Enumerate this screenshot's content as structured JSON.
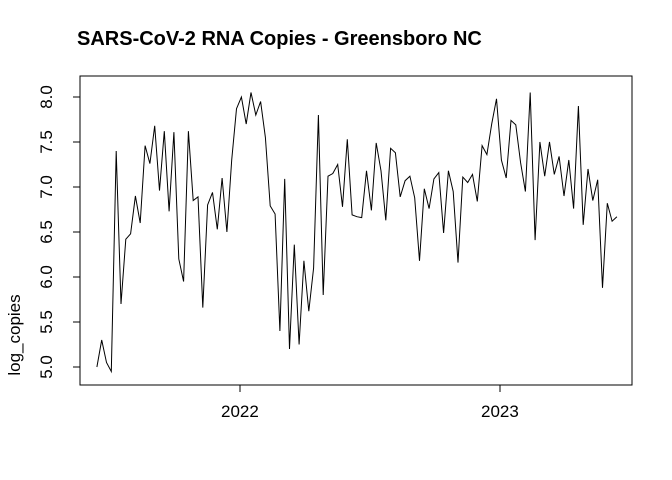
{
  "figure": {
    "background": "#ffffff",
    "foreground": "#000000"
  },
  "chart_data": {
    "type": "line",
    "title": "SARS-CoV-2 RNA Copies - Greensboro NC",
    "xlabel": "",
    "ylabel": "log_copies",
    "grid": false,
    "legend": "none",
    "x_axis": {
      "ticks": [
        2022,
        2023
      ],
      "tick_labels": [
        "2022",
        "2023"
      ],
      "xlim": [
        2021.385,
        2023.508
      ]
    },
    "y_axis": {
      "ticks": [
        5.0,
        5.5,
        6.0,
        6.5,
        7.0,
        7.5,
        8.0
      ],
      "tick_labels": [
        "5.0",
        "5.5",
        "6.0",
        "6.5",
        "7.0",
        "7.5",
        "8.0"
      ],
      "ylim": [
        4.8,
        8.233
      ]
    },
    "series": [
      {
        "name": "log_copies",
        "color": "#000000",
        "x_start": 2021.45,
        "x_end": 2023.45,
        "values": [
          5.0,
          5.3,
          5.05,
          4.95,
          7.4,
          5.7,
          6.42,
          6.48,
          6.9,
          6.6,
          7.46,
          7.26,
          7.68,
          6.96,
          7.62,
          6.73,
          7.61,
          6.2,
          5.95,
          7.62,
          6.85,
          6.89,
          5.66,
          6.8,
          6.94,
          6.53,
          7.1,
          6.5,
          7.3,
          7.87,
          8.0,
          7.7,
          8.05,
          7.8,
          7.95,
          7.55,
          6.79,
          6.7,
          5.4,
          7.09,
          5.2,
          6.36,
          5.25,
          6.18,
          5.62,
          6.1,
          7.8,
          5.8,
          7.12,
          7.15,
          7.25,
          6.78,
          7.53,
          6.69,
          6.67,
          6.66,
          7.18,
          6.74,
          7.49,
          7.18,
          6.63,
          7.43,
          7.38,
          6.89,
          7.07,
          7.12,
          6.88,
          6.18,
          6.98,
          6.76,
          7.09,
          7.16,
          6.49,
          7.18,
          6.95,
          6.16,
          7.11,
          7.05,
          7.14,
          6.84,
          7.46,
          7.36,
          7.7,
          7.98,
          7.3,
          7.1,
          7.74,
          7.69,
          7.27,
          6.95,
          8.05,
          6.41,
          7.5,
          7.12,
          7.5,
          7.14,
          7.34,
          6.9,
          7.3,
          6.76,
          7.9,
          6.58,
          7.2,
          6.85,
          7.08,
          5.88,
          6.82,
          6.62,
          6.67
        ]
      }
    ]
  }
}
